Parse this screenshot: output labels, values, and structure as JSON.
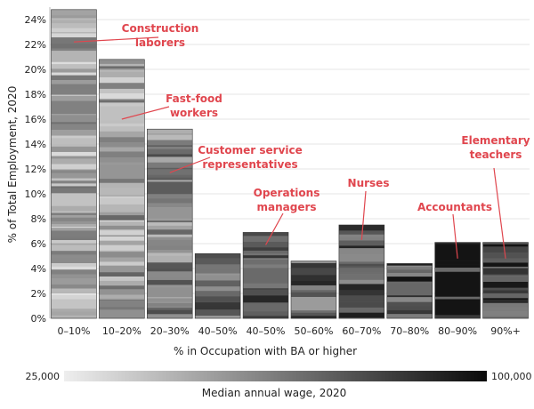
{
  "chart_data": {
    "type": "bar",
    "categories": [
      "0–10%",
      "10–20%",
      "20–30%",
      "40–50%",
      "40–50%",
      "50–60%",
      "60–70%",
      "70–80%",
      "80–90%",
      "90%+"
    ],
    "values": [
      24.8,
      20.8,
      15.2,
      5.2,
      6.9,
      4.6,
      7.5,
      4.4,
      6.1,
      6.1
    ],
    "ylabel": "% of Total Employment, 2020",
    "xlabel": "% in Occupation with BA or higher",
    "ylim": [
      0,
      25
    ],
    "yticks": [
      0,
      2,
      4,
      6,
      8,
      10,
      12,
      14,
      16,
      18,
      20,
      22,
      24
    ],
    "ytick_labels": [
      "0%",
      "2%",
      "4%",
      "6%",
      "8%",
      "10%",
      "12%",
      "14%",
      "16%",
      "18%",
      "20%",
      "22%",
      "24%"
    ],
    "grid": true,
    "bar_fill": "stacked occupations shaded by median annual wage",
    "annotations": [
      {
        "lines": [
          "Construction",
          "laborers"
        ],
        "category_index": 0,
        "y": 22.2
      },
      {
        "lines": [
          "Fast-food",
          "workers"
        ],
        "category_index": 1,
        "y": 16.0
      },
      {
        "lines": [
          "Customer service",
          "representatives"
        ],
        "category_index": 2,
        "y": 11.7
      },
      {
        "lines": [
          "Operations",
          "managers"
        ],
        "category_index": 4,
        "y": 5.9
      },
      {
        "lines": [
          "Nurses"
        ],
        "category_index": 6,
        "y": 6.3
      },
      {
        "lines": [
          "Accountants"
        ],
        "category_index": 8,
        "y": 4.8
      },
      {
        "lines": [
          "Elementary",
          "teachers"
        ],
        "category_index": 9,
        "y": 4.8
      }
    ],
    "colorbar": {
      "min_label": "25,000",
      "max_label": "100,000",
      "title": "Median annual wage, 2020",
      "min_color": "#eeeeee",
      "max_color": "#0a0a0a"
    },
    "annotation_color": "#e0464e"
  }
}
